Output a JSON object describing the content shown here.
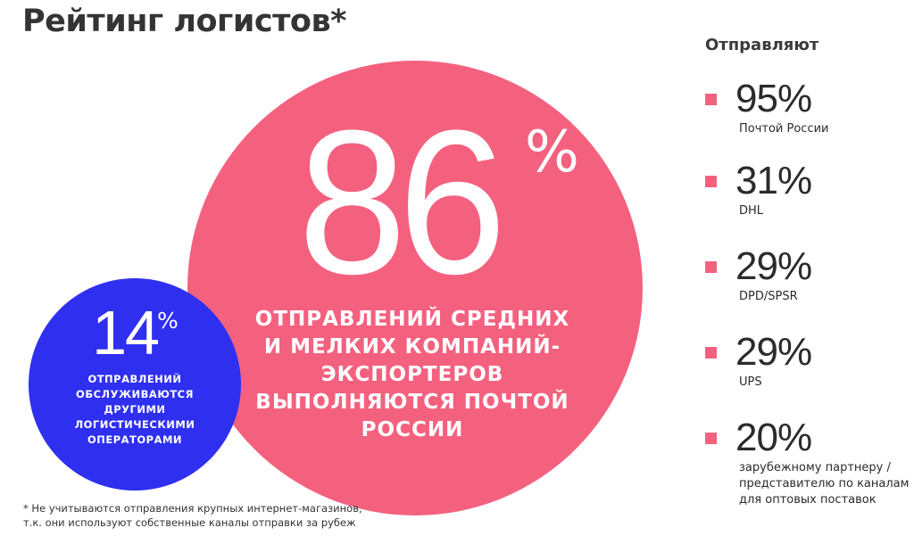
{
  "title": "Рейтинг логистов*",
  "main_stat": {
    "value": "86",
    "unit": "%",
    "caption_lines": [
      "ОТПРАВЛЕНИЙ СРЕДНИХ",
      "И МЕЛКИХ КОМПАНИЙ-",
      "ЭКСПОРТЕРОВ",
      "ВЫПОЛНЯЮТСЯ ПОЧТОЙ",
      "РОССИИ"
    ],
    "color": "#f4617f"
  },
  "secondary_stat": {
    "value": "14",
    "unit": "%",
    "caption_lines": [
      "ОТПРАВЛЕНИЙ",
      "ОБСЛУЖИВАЮТСЯ",
      "ДРУГИМИ",
      "ЛОГИСТИЧЕСКИМИ",
      "ОПЕРАТОРАМИ"
    ],
    "color": "#2f2ff0"
  },
  "shippers": {
    "heading": "Отправляют",
    "items": [
      {
        "value": "95%",
        "label_lines": [
          "Почтой России"
        ]
      },
      {
        "value": "31%",
        "label_lines": [
          "DHL"
        ]
      },
      {
        "value": "29%",
        "label_lines": [
          "DPD/SPSR"
        ]
      },
      {
        "value": "29%",
        "label_lines": [
          "UPS"
        ]
      },
      {
        "value": "20%",
        "label_lines": [
          "зарубежному партнеру /",
          "представителю по каналам",
          "для оптовых поставок"
        ]
      }
    ]
  },
  "footnote_lines": [
    "* Не учитываются отправления крупных интернет-магазинов,",
    "т.к. они используют собственные каналы отправки за рубеж"
  ]
}
